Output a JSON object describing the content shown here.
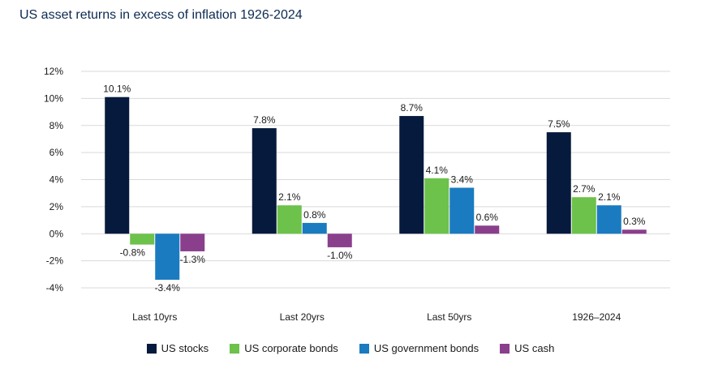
{
  "chart_data": {
    "type": "bar",
    "title": "US asset returns in excess of inflation 1926-2024",
    "categories": [
      "Last 10yrs",
      "Last 20yrs",
      "Last 50yrs",
      "1926–2024"
    ],
    "series": [
      {
        "name": "US stocks",
        "color": "#061a3d",
        "values": [
          10.1,
          7.8,
          8.7,
          7.5
        ],
        "labels": [
          "10.1%",
          "7.8%",
          "8.7%",
          "7.5%"
        ]
      },
      {
        "name": "US corporate bonds",
        "color": "#6cc24a",
        "values": [
          -0.8,
          2.1,
          4.1,
          2.7
        ],
        "labels": [
          "-0.8%",
          "2.1%",
          "4.1%",
          "2.7%"
        ]
      },
      {
        "name": "US government bonds",
        "color": "#1a7bc0",
        "values": [
          -3.4,
          0.8,
          3.4,
          2.1
        ],
        "labels": [
          "-3.4%",
          "0.8%",
          "3.4%",
          "2.1%"
        ]
      },
      {
        "name": "US cash",
        "color": "#8a3f8c",
        "values": [
          -1.3,
          -1.0,
          0.6,
          0.3
        ],
        "labels": [
          "-1.3%",
          "-1.0%",
          "0.6%",
          "0.3%"
        ]
      }
    ],
    "ylim": [
      -4,
      12
    ],
    "yticks": [
      -4,
      -2,
      0,
      2,
      4,
      6,
      8,
      10,
      12
    ],
    "ytick_labels": [
      "-4%",
      "-2%",
      "0%",
      "2%",
      "4%",
      "6%",
      "8%",
      "10%",
      "12%"
    ],
    "grid": true,
    "legend": "bottom"
  }
}
